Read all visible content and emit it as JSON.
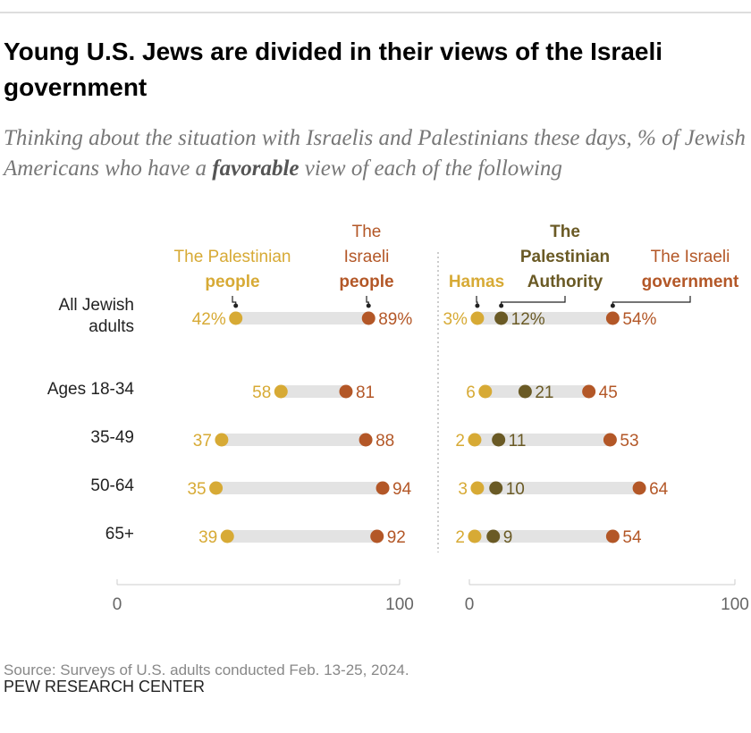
{
  "title": "Young U.S. Jews are divided in their views of the Israeli government",
  "subtitle": "Thinking about the situation with Israelis and Palestinians these days, % of Jewish Americans who have a favorable view of each of the following",
  "source": "Source: Surveys of U.S. adults conducted Feb. 13-25, 2024.",
  "note": "PEW RESEARCH CENTER",
  "chart_data": [
    {
      "type": "dot",
      "categories": [
        "All Jewish adults",
        "Ages 18-34",
        "35-49",
        "50-64",
        "65+"
      ],
      "xlim": [
        0,
        100
      ],
      "xticks": [
        0,
        100
      ],
      "series": [
        {
          "name": "The Palestinian people",
          "color": "#d7aa35",
          "values": [
            42,
            58,
            37,
            35,
            39
          ],
          "value_labels": [
            "42%",
            "58",
            "37",
            "35",
            "39"
          ]
        },
        {
          "name": "The Israeli people",
          "color": "#b35727",
          "values": [
            89,
            81,
            88,
            94,
            92
          ],
          "value_labels": [
            "89%",
            "81",
            "88",
            "94",
            "92"
          ]
        }
      ]
    },
    {
      "type": "dot",
      "xlim": [
        0,
        100
      ],
      "xticks": [
        0,
        100
      ],
      "series": [
        {
          "name": "Hamas",
          "color": "#d7aa35",
          "values": [
            3,
            6,
            2,
            3,
            2
          ],
          "value_labels": [
            "3%",
            "6",
            "2",
            "3",
            "2"
          ]
        },
        {
          "name": "The Palestinian Authority",
          "color": "#6a5a25",
          "values": [
            12,
            21,
            11,
            10,
            9
          ],
          "value_labels": [
            "12%",
            "21",
            "11",
            "10",
            "9"
          ]
        },
        {
          "name": "The Israeli government",
          "color": "#b35727",
          "values": [
            54,
            45,
            53,
            64,
            54
          ],
          "value_labels": [
            "54%",
            "45",
            "53",
            "64",
            "54"
          ]
        }
      ]
    }
  ]
}
